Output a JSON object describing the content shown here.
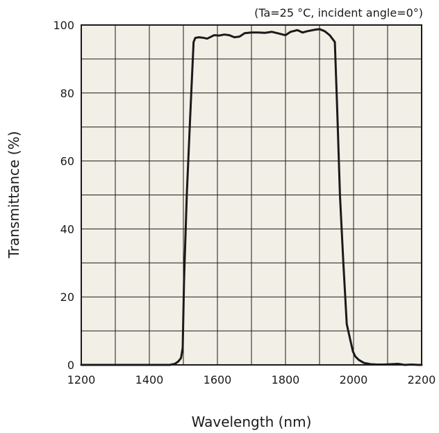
{
  "chart_data": {
    "type": "line",
    "title": "",
    "annotation": "(Ta=25 °C, incident angle=0°)",
    "xlabel": "Wavelength (nm)",
    "ylabel": "Transmittance (%)",
    "xlim": [
      1200,
      2200
    ],
    "ylim": [
      0,
      100
    ],
    "xticks": [
      1200,
      1400,
      1600,
      1800,
      2000,
      2200
    ],
    "yticks": [
      0,
      20,
      40,
      60,
      80,
      100
    ],
    "x_grid_step": 100,
    "y_grid_step": 10,
    "grid": true,
    "plot_background": "#f1efe6",
    "grid_color": "#1a1a1a",
    "line_color": "#1a1a1a",
    "series": [
      {
        "x": [
          1200,
          1460,
          1475,
          1485,
          1493,
          1498,
          1502,
          1510,
          1520,
          1530,
          1535,
          1545,
          1555,
          1570,
          1590,
          1605,
          1620,
          1635,
          1650,
          1665,
          1680,
          1700,
          1720,
          1740,
          1760,
          1780,
          1800,
          1815,
          1835,
          1850,
          1865,
          1885,
          1900,
          1915,
          1930,
          1945,
          1952,
          1960,
          1970,
          1980,
          1990,
          1998,
          2005,
          2015,
          2030,
          2050,
          2070,
          2090,
          2110,
          2130,
          2150,
          2170,
          2190,
          2200
        ],
        "y": [
          0,
          0,
          0.3,
          1,
          2,
          5,
          25,
          50,
          73,
          95,
          96.2,
          96.4,
          96.3,
          96.0,
          97.0,
          96.9,
          97.2,
          97.0,
          96.4,
          96.6,
          97.6,
          97.8,
          97.8,
          97.7,
          98.0,
          97.5,
          97.0,
          98.0,
          98.5,
          97.8,
          98.2,
          98.6,
          98.8,
          98.2,
          97.0,
          95.0,
          75.0,
          50.0,
          30.0,
          12.0,
          7.5,
          4.0,
          2.5,
          1.5,
          0.6,
          0.2,
          0.1,
          0.1,
          0.2,
          0.3,
          0.0,
          0.1,
          0.0,
          0.0
        ]
      }
    ]
  }
}
